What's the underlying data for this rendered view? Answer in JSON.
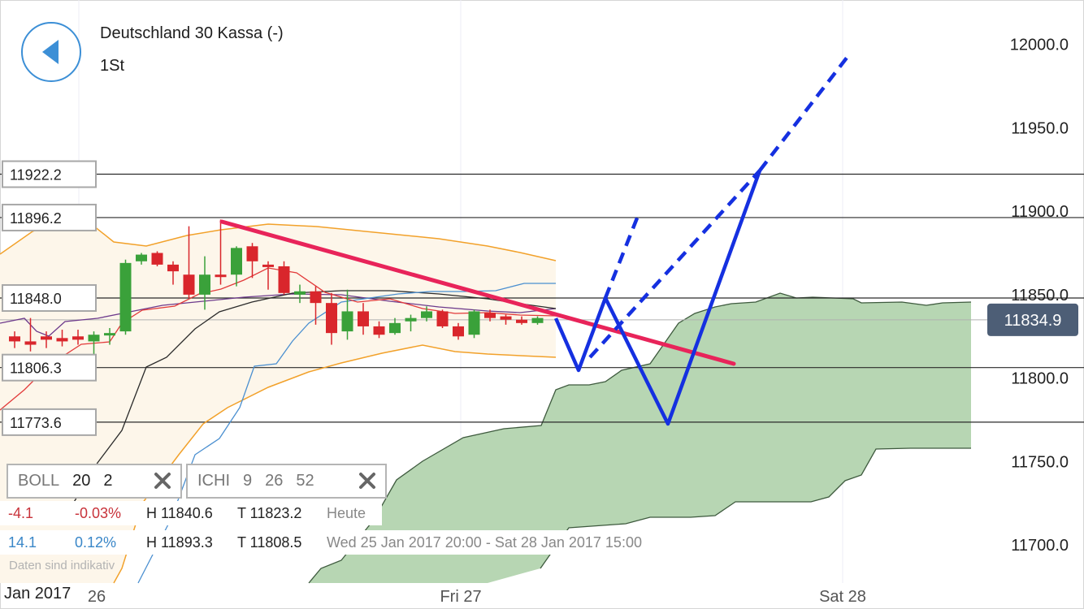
{
  "header": {
    "title": "Deutschland 30 Kassa (-)",
    "subtitle": "1St",
    "back_icon": "back-arrow-icon"
  },
  "indicators": [
    {
      "name": "BOLL",
      "params": [
        "20",
        "2"
      ],
      "remove_icon": "close-icon"
    },
    {
      "name": "ICHI",
      "params": [
        "9",
        "26",
        "52"
      ],
      "remove_icon": "close-icon"
    }
  ],
  "stats": {
    "day": {
      "change": "-4.1",
      "pct": "-0.03%",
      "high": "H 11840.6",
      "low": "T 11823.2",
      "period": "Heute"
    },
    "range": {
      "change": "14.1",
      "pct": "0.12%",
      "high": "H 11893.3",
      "low": "T 11808.5",
      "period": "Wed 25 Jan 2017 20:00 - Sat 28 Jan 2017 15:00"
    }
  },
  "note": "Daten sind indikativ",
  "year_label": "Jan 2017",
  "colors": {
    "up": "#3aa13a",
    "down": "#d9262c",
    "trend": "#e8245a",
    "projection": "#1530e0",
    "cloud": "#b7d6b3",
    "boll": "#f2a12a",
    "price_tag": "#4d5e76"
  },
  "chart_data": {
    "type": "candlestick",
    "ylim": [
      11680,
      12010
    ],
    "y_ticks": [
      "12000.0",
      "11950.0",
      "11900.0",
      "11850.0",
      "11800.0",
      "11750.0",
      "11700.0"
    ],
    "x_ticks": [
      "26",
      "Fri 27",
      "Sat 28"
    ],
    "current_price": "11834.9",
    "levels": [
      {
        "value": 11922.2,
        "label": "11922.2"
      },
      {
        "value": 11896.2,
        "label": "11896.2"
      },
      {
        "value": 11848.0,
        "label": "11848.0"
      },
      {
        "value": 11806.3,
        "label": "11806.3"
      },
      {
        "value": 11773.6,
        "label": "11773.6"
      }
    ],
    "candles": [
      {
        "o": 11825,
        "h": 11828,
        "l": 11818,
        "c": 11822
      },
      {
        "o": 11822,
        "h": 11836,
        "l": 11816,
        "c": 11820
      },
      {
        "o": 11825,
        "h": 11828,
        "l": 11818,
        "c": 11823
      },
      {
        "o": 11824,
        "h": 11829,
        "l": 11819,
        "c": 11822
      },
      {
        "o": 11825,
        "h": 11829,
        "l": 11820,
        "c": 11823
      },
      {
        "o": 11822,
        "h": 11828,
        "l": 11812,
        "c": 11826
      },
      {
        "o": 11826,
        "h": 11830,
        "l": 11820,
        "c": 11827
      },
      {
        "o": 11828,
        "h": 11871,
        "l": 11826,
        "c": 11869
      },
      {
        "o": 11870,
        "h": 11875,
        "l": 11868,
        "c": 11874
      },
      {
        "o": 11875,
        "h": 11876,
        "l": 11867,
        "c": 11868
      },
      {
        "o": 11868,
        "h": 11870,
        "l": 11856,
        "c": 11864
      },
      {
        "o": 11862,
        "h": 11891,
        "l": 11848,
        "c": 11850
      },
      {
        "o": 11850,
        "h": 11873,
        "l": 11841,
        "c": 11862
      },
      {
        "o": 11862,
        "h": 11895,
        "l": 11856,
        "c": 11861
      },
      {
        "o": 11862,
        "h": 11879,
        "l": 11855,
        "c": 11878
      },
      {
        "o": 11879,
        "h": 11881,
        "l": 11860,
        "c": 11870
      },
      {
        "o": 11868,
        "h": 11870,
        "l": 11853,
        "c": 11867
      },
      {
        "o": 11867,
        "h": 11870,
        "l": 11850,
        "c": 11851
      },
      {
        "o": 11850,
        "h": 11856,
        "l": 11845,
        "c": 11852
      },
      {
        "o": 11852,
        "h": 11855,
        "l": 11832,
        "c": 11845
      },
      {
        "o": 11845,
        "h": 11851,
        "l": 11820,
        "c": 11827
      },
      {
        "o": 11828,
        "h": 11853,
        "l": 11823,
        "c": 11840
      },
      {
        "o": 11840,
        "h": 11845,
        "l": 11826,
        "c": 11831
      },
      {
        "o": 11831,
        "h": 11834,
        "l": 11824,
        "c": 11826
      },
      {
        "o": 11827,
        "h": 11836,
        "l": 11826,
        "c": 11833
      },
      {
        "o": 11834,
        "h": 11838,
        "l": 11828,
        "c": 11836
      },
      {
        "o": 11836,
        "h": 11843,
        "l": 11834,
        "c": 11840
      },
      {
        "o": 11840,
        "h": 11841,
        "l": 11830,
        "c": 11831
      },
      {
        "o": 11831,
        "h": 11833,
        "l": 11823,
        "c": 11825
      },
      {
        "o": 11826,
        "h": 11841,
        "l": 11824,
        "c": 11840
      },
      {
        "o": 11839,
        "h": 11841,
        "l": 11834,
        "c": 11836
      },
      {
        "o": 11837,
        "h": 11838,
        "l": 11832,
        "c": 11835
      },
      {
        "o": 11835,
        "h": 11837,
        "l": 11832,
        "c": 11833
      },
      {
        "o": 11833,
        "h": 11837,
        "l": 11832,
        "c": 11836
      }
    ]
  }
}
